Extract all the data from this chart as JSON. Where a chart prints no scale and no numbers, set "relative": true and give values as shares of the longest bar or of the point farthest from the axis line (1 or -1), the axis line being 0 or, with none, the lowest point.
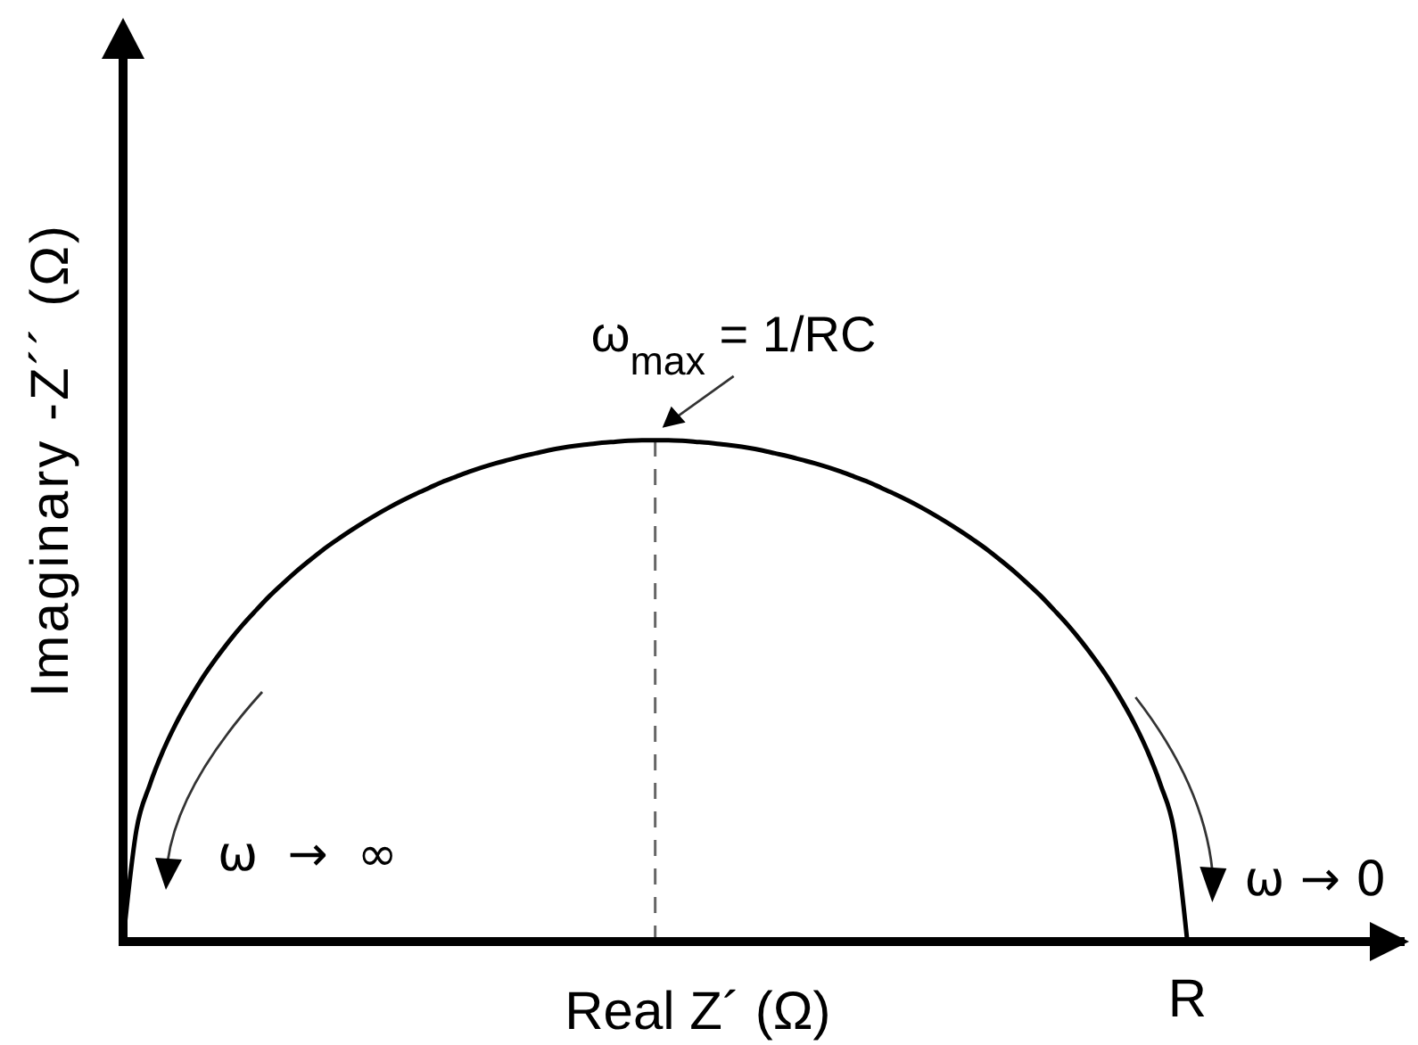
{
  "chart_data": {
    "type": "line",
    "xlabel": "Real Z´ (Ω)",
    "ylabel": "Imaginary -Z´´ (Ω)",
    "relative": true,
    "categories": [
      null,
      null,
      null,
      null,
      null,
      null,
      null,
      null,
      null,
      null,
      null,
      null,
      null,
      null,
      null,
      null,
      null,
      null,
      null,
      null,
      null,
      null,
      null,
      null,
      null,
      null,
      null,
      null,
      null,
      null,
      null,
      null,
      null,
      null,
      null,
      null,
      null,
      null,
      null,
      null,
      null,
      null,
      null,
      null,
      null,
      null,
      null,
      null,
      null,
      null,
      null,
      null,
      null,
      null,
      null,
      null,
      null,
      null,
      null,
      null,
      null,
      null,
      null,
      null,
      null,
      null,
      null,
      null,
      null,
      null,
      null,
      null,
      null,
      null,
      null,
      null,
      null,
      null,
      null,
      null,
      null,
      null,
      null,
      null,
      null,
      null,
      null,
      null,
      null,
      null,
      null,
      null,
      null,
      null,
      null,
      null,
      null
    ],
    "series": [
      {
        "color": "#000000",
        "values": [
          0,
          0.222,
          0.312,
          0.38,
          0.436,
          0.484,
          0.527,
          0.565,
          0.6,
          0.632,
          0.661,
          0.689,
          0.714,
          0.738,
          0.76,
          0.781,
          0.8,
          0.818,
          0.835,
          0.851,
          0.866,
          0.88,
          0.893,
          0.905,
          0.917,
          0.927,
          0.937,
          0.946,
          0.954,
          0.961,
          0.968,
          0.974,
          0.98,
          0.985,
          0.989,
          0.992,
          0.995,
          0.997,
          0.999,
          1,
          1,
          1,
          0.999,
          0.997,
          0.995,
          0.992,
          0.989,
          0.985,
          0.98,
          0.974,
          0.968,
          0.961,
          0.954,
          0.946,
          0.937,
          0.927,
          0.917,
          0.905,
          0.893,
          0.88,
          0.866,
          0.851,
          0.835,
          0.818,
          0.8,
          0.781,
          0.76,
          0.738,
          0.714,
          0.689,
          0.661,
          0.632,
          0.6,
          0.565,
          0.527,
          0.484,
          0.436,
          0.38,
          0.312,
          0.222,
          0,
          null,
          null,
          null,
          null,
          null,
          null,
          null,
          null,
          null,
          null,
          null,
          null,
          null,
          null,
          null,
          null
        ]
      }
    ],
    "annotations": [
      {
        "text": "ω$_{max}$ = 1/RC",
        "y": 1
      },
      "ω → ∞",
      "ω → 0",
      "R"
    ]
  }
}
